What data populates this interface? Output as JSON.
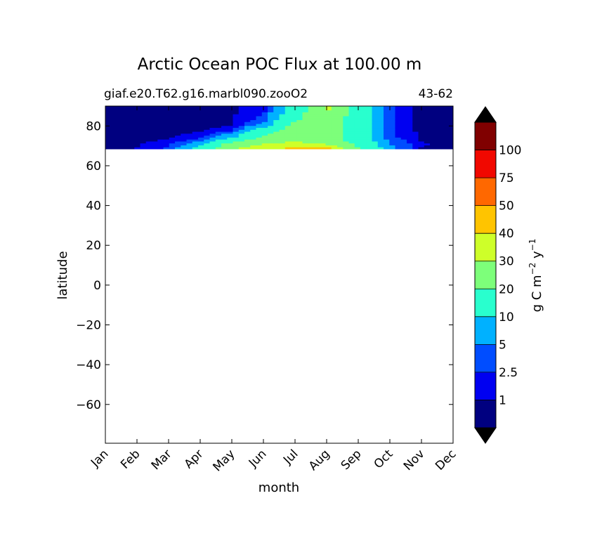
{
  "chart_data": {
    "type": "heatmap",
    "title": "Arctic Ocean POC Flux at 100.00 m",
    "subtitle_left": "giaf.e20.T62.g16.marbl090.zooO2",
    "subtitle_right": "43-62",
    "xlabel": "month",
    "ylabel": "latitude",
    "x_categories": [
      "Jan",
      "Feb",
      "Mar",
      "Apr",
      "May",
      "Jun",
      "Jul",
      "Aug",
      "Sep",
      "Oct",
      "Nov",
      "Dec"
    ],
    "xlim": [
      0,
      11
    ],
    "ylim": [
      -79.5,
      90
    ],
    "y_ticks": [
      80,
      60,
      40,
      20,
      0,
      -20,
      -40,
      -60
    ],
    "y_tick_labels": [
      "80",
      "60",
      "40",
      "20",
      "0",
      "−20",
      "−40",
      "−60"
    ],
    "data_lat_range": [
      68.5,
      90
    ],
    "latitudes": [
      69,
      71,
      73,
      75,
      78,
      81,
      84,
      87,
      90
    ],
    "values": [
      [
        0.8,
        1.0,
        3,
        12,
        28,
        35,
        42,
        42,
        20,
        6,
        0.8,
        0.8
      ],
      [
        0.6,
        0.8,
        2,
        8,
        24,
        30,
        33,
        30,
        18,
        5,
        1.2,
        0.6
      ],
      [
        0.5,
        0.6,
        1.2,
        3,
        15,
        25,
        28,
        25,
        16,
        4,
        0.9,
        0.5
      ],
      [
        0.4,
        0.5,
        0.8,
        1.5,
        8,
        20,
        25,
        24,
        15,
        3,
        0.6,
        0.4
      ],
      [
        0.3,
        0.4,
        0.6,
        0.9,
        1.5,
        15,
        25,
        28,
        14,
        3,
        0.5,
        0.3
      ],
      [
        0.2,
        0.3,
        0.5,
        0.7,
        0.9,
        5,
        22,
        28,
        14,
        3,
        0.4,
        0.2
      ],
      [
        0.2,
        0.3,
        0.4,
        0.6,
        0.8,
        3,
        18,
        29,
        14,
        3,
        0.4,
        0.2
      ],
      [
        0.2,
        0.3,
        0.4,
        0.6,
        0.8,
        2,
        15,
        30,
        14,
        3,
        0.4,
        0.2
      ],
      [
        0.2,
        0.3,
        0.4,
        0.6,
        0.8,
        1.5,
        12,
        32,
        14,
        3,
        0.4,
        0.2
      ]
    ],
    "colorbar": {
      "label_main": "g C m",
      "label_exp1": "−2",
      "label_mid": " y",
      "label_exp2": "−1",
      "levels": [
        1,
        2.5,
        5,
        10,
        20,
        30,
        40,
        50,
        75,
        100
      ],
      "level_labels": [
        "1",
        "2.5",
        "5",
        "10",
        "20",
        "30",
        "40",
        "50",
        "75",
        "100"
      ],
      "colors": [
        "#000080",
        "#0000f1",
        "#004dff",
        "#00b1ff",
        "#29ffce",
        "#7dff7a",
        "#ceff29",
        "#ffc400",
        "#ff6800",
        "#f10800",
        "#800000"
      ],
      "under_color": "#000000",
      "over_color": "#000000",
      "extend": "both"
    }
  }
}
